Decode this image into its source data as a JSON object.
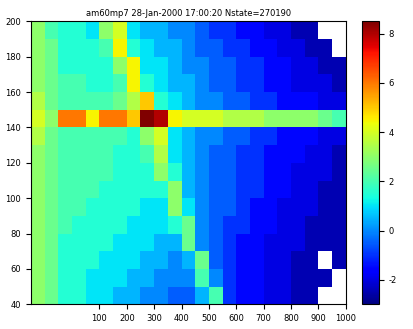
{
  "chart_data": {
    "type": "heatmap",
    "title": "am60mp7 28-Jan-2000 17:00:20 Nstate=270190",
    "xlim": [
      -150,
      1000
    ],
    "ylim": [
      40,
      200
    ],
    "xticks": [
      100,
      200,
      300,
      400,
      500,
      600,
      700,
      800,
      900,
      1000
    ],
    "yticks": [
      40,
      60,
      80,
      100,
      120,
      140,
      160,
      180,
      200
    ],
    "x_edges": [
      -150,
      -100,
      -50,
      0,
      50,
      100,
      150,
      200,
      250,
      300,
      350,
      400,
      450,
      500,
      550,
      600,
      650,
      700,
      750,
      800,
      850,
      900,
      950,
      1000
    ],
    "y_edges": [
      40,
      50,
      60,
      70,
      80,
      90,
      100,
      110,
      120,
      130,
      140,
      150,
      160,
      170,
      180,
      190,
      200
    ],
    "cells": [
      [
        3.0,
        2.5,
        1.5,
        1.5,
        1.0,
        1.0,
        0.5,
        0.5,
        0.0,
        0.0,
        -0.5,
        -0.5,
        0.5,
        2.0,
        -1.0,
        -1.5,
        -1.5,
        -2.0,
        -2.0,
        -2.5,
        -2.5,
        null,
        null
      ],
      [
        3.0,
        2.5,
        1.5,
        1.5,
        1.0,
        1.0,
        1.0,
        0.5,
        0.5,
        0.0,
        0.0,
        0.0,
        2.0,
        0.0,
        -1.0,
        -1.5,
        -1.5,
        -2.0,
        -2.0,
        -2.5,
        -2.5,
        -2.5,
        null
      ],
      [
        3.0,
        2.5,
        1.5,
        1.5,
        1.5,
        1.0,
        1.0,
        1.0,
        0.5,
        0.5,
        0.0,
        0.5,
        2.5,
        -0.5,
        -1.0,
        -1.5,
        -1.5,
        -2.0,
        -2.0,
        -2.5,
        -2.5,
        null,
        -2.5
      ],
      [
        3.0,
        2.5,
        1.5,
        1.5,
        1.5,
        1.5,
        1.0,
        1.0,
        1.0,
        0.5,
        0.5,
        2.5,
        0.0,
        -0.5,
        -1.0,
        -1.5,
        -1.5,
        -2.0,
        -2.0,
        -2.0,
        -2.5,
        -2.5,
        -2.5
      ],
      [
        3.0,
        2.5,
        2.0,
        1.5,
        1.5,
        1.5,
        1.5,
        1.0,
        1.0,
        1.0,
        1.5,
        2.5,
        0.0,
        -0.5,
        -1.0,
        -1.0,
        -1.5,
        -1.5,
        -2.0,
        -2.0,
        -2.5,
        -2.5,
        -2.5
      ],
      [
        3.0,
        2.5,
        2.0,
        2.0,
        1.5,
        1.5,
        1.5,
        1.5,
        1.0,
        1.0,
        3.0,
        1.0,
        0.0,
        -0.5,
        -0.5,
        -1.0,
        -1.5,
        -1.5,
        -2.0,
        -2.0,
        -2.0,
        -2.5,
        -2.5
      ],
      [
        3.0,
        2.5,
        2.0,
        2.0,
        2.0,
        1.5,
        1.5,
        1.5,
        1.5,
        1.5,
        3.0,
        0.5,
        0.0,
        -0.5,
        -0.5,
        -1.0,
        -1.0,
        -1.5,
        -1.5,
        -2.0,
        -2.0,
        -2.5,
        -2.5
      ],
      [
        3.0,
        2.5,
        2.0,
        2.0,
        2.0,
        2.0,
        1.5,
        1.5,
        1.5,
        3.0,
        1.5,
        0.5,
        0.0,
        -0.5,
        -0.5,
        -1.0,
        -1.0,
        -1.5,
        -1.5,
        -2.0,
        -2.0,
        -2.0,
        -2.5
      ],
      [
        3.0,
        2.5,
        2.0,
        2.0,
        2.0,
        2.0,
        1.5,
        1.5,
        2.0,
        3.5,
        1.0,
        0.5,
        0.0,
        -0.5,
        -0.5,
        -1.0,
        -1.0,
        -1.5,
        -1.5,
        -1.5,
        -2.0,
        -2.0,
        -2.5
      ],
      [
        3.5,
        2.5,
        2.0,
        2.0,
        2.0,
        2.0,
        2.0,
        1.5,
        3.0,
        4.0,
        1.0,
        0.5,
        0.0,
        0.0,
        -0.5,
        -0.5,
        -1.0,
        -1.0,
        -1.5,
        -1.5,
        -1.5,
        -2.0,
        -2.0
      ],
      [
        4.0,
        3.0,
        6.0,
        6.0,
        4.5,
        6.0,
        6.0,
        5.0,
        8.5,
        8.0,
        4.5,
        4.0,
        4.0,
        4.0,
        3.5,
        3.5,
        3.5,
        3.0,
        3.0,
        3.0,
        3.0,
        2.5,
        2.0
      ],
      [
        3.5,
        2.5,
        2.0,
        2.0,
        2.0,
        2.0,
        2.5,
        3.5,
        5.0,
        1.5,
        1.0,
        0.5,
        0.0,
        0.0,
        -0.5,
        -0.5,
        -1.0,
        -1.0,
        -1.5,
        -1.5,
        -1.5,
        -2.0,
        -2.0
      ],
      [
        3.0,
        2.5,
        2.0,
        2.0,
        1.5,
        1.5,
        2.0,
        4.5,
        1.5,
        1.0,
        0.5,
        0.5,
        0.0,
        -0.5,
        -0.5,
        -1.0,
        -1.0,
        -1.5,
        -1.5,
        -2.0,
        -2.0,
        -2.0,
        -2.5
      ],
      [
        3.0,
        2.5,
        1.5,
        1.5,
        1.5,
        1.5,
        3.0,
        4.5,
        1.0,
        1.0,
        0.5,
        0.0,
        0.0,
        -0.5,
        -0.5,
        -1.0,
        -1.0,
        -1.5,
        -1.5,
        -2.0,
        -2.0,
        -2.5,
        -2.5
      ],
      [
        3.0,
        2.5,
        1.5,
        1.5,
        1.5,
        2.0,
        4.5,
        1.5,
        1.0,
        0.5,
        0.5,
        0.0,
        -0.5,
        -0.5,
        -1.0,
        -1.0,
        -1.5,
        -1.5,
        -2.0,
        -2.0,
        -2.5,
        -2.5,
        null
      ],
      [
        3.0,
        2.0,
        1.5,
        1.5,
        1.0,
        3.0,
        4.0,
        1.0,
        0.5,
        0.5,
        0.0,
        0.0,
        -0.5,
        -1.0,
        -1.0,
        -1.5,
        -1.5,
        -2.0,
        -2.0,
        -2.5,
        -2.5,
        null,
        null
      ]
    ],
    "colorbar": {
      "range": [
        -3,
        8.5
      ],
      "ticks": [
        -2,
        0,
        2,
        4,
        6,
        8
      ]
    }
  }
}
